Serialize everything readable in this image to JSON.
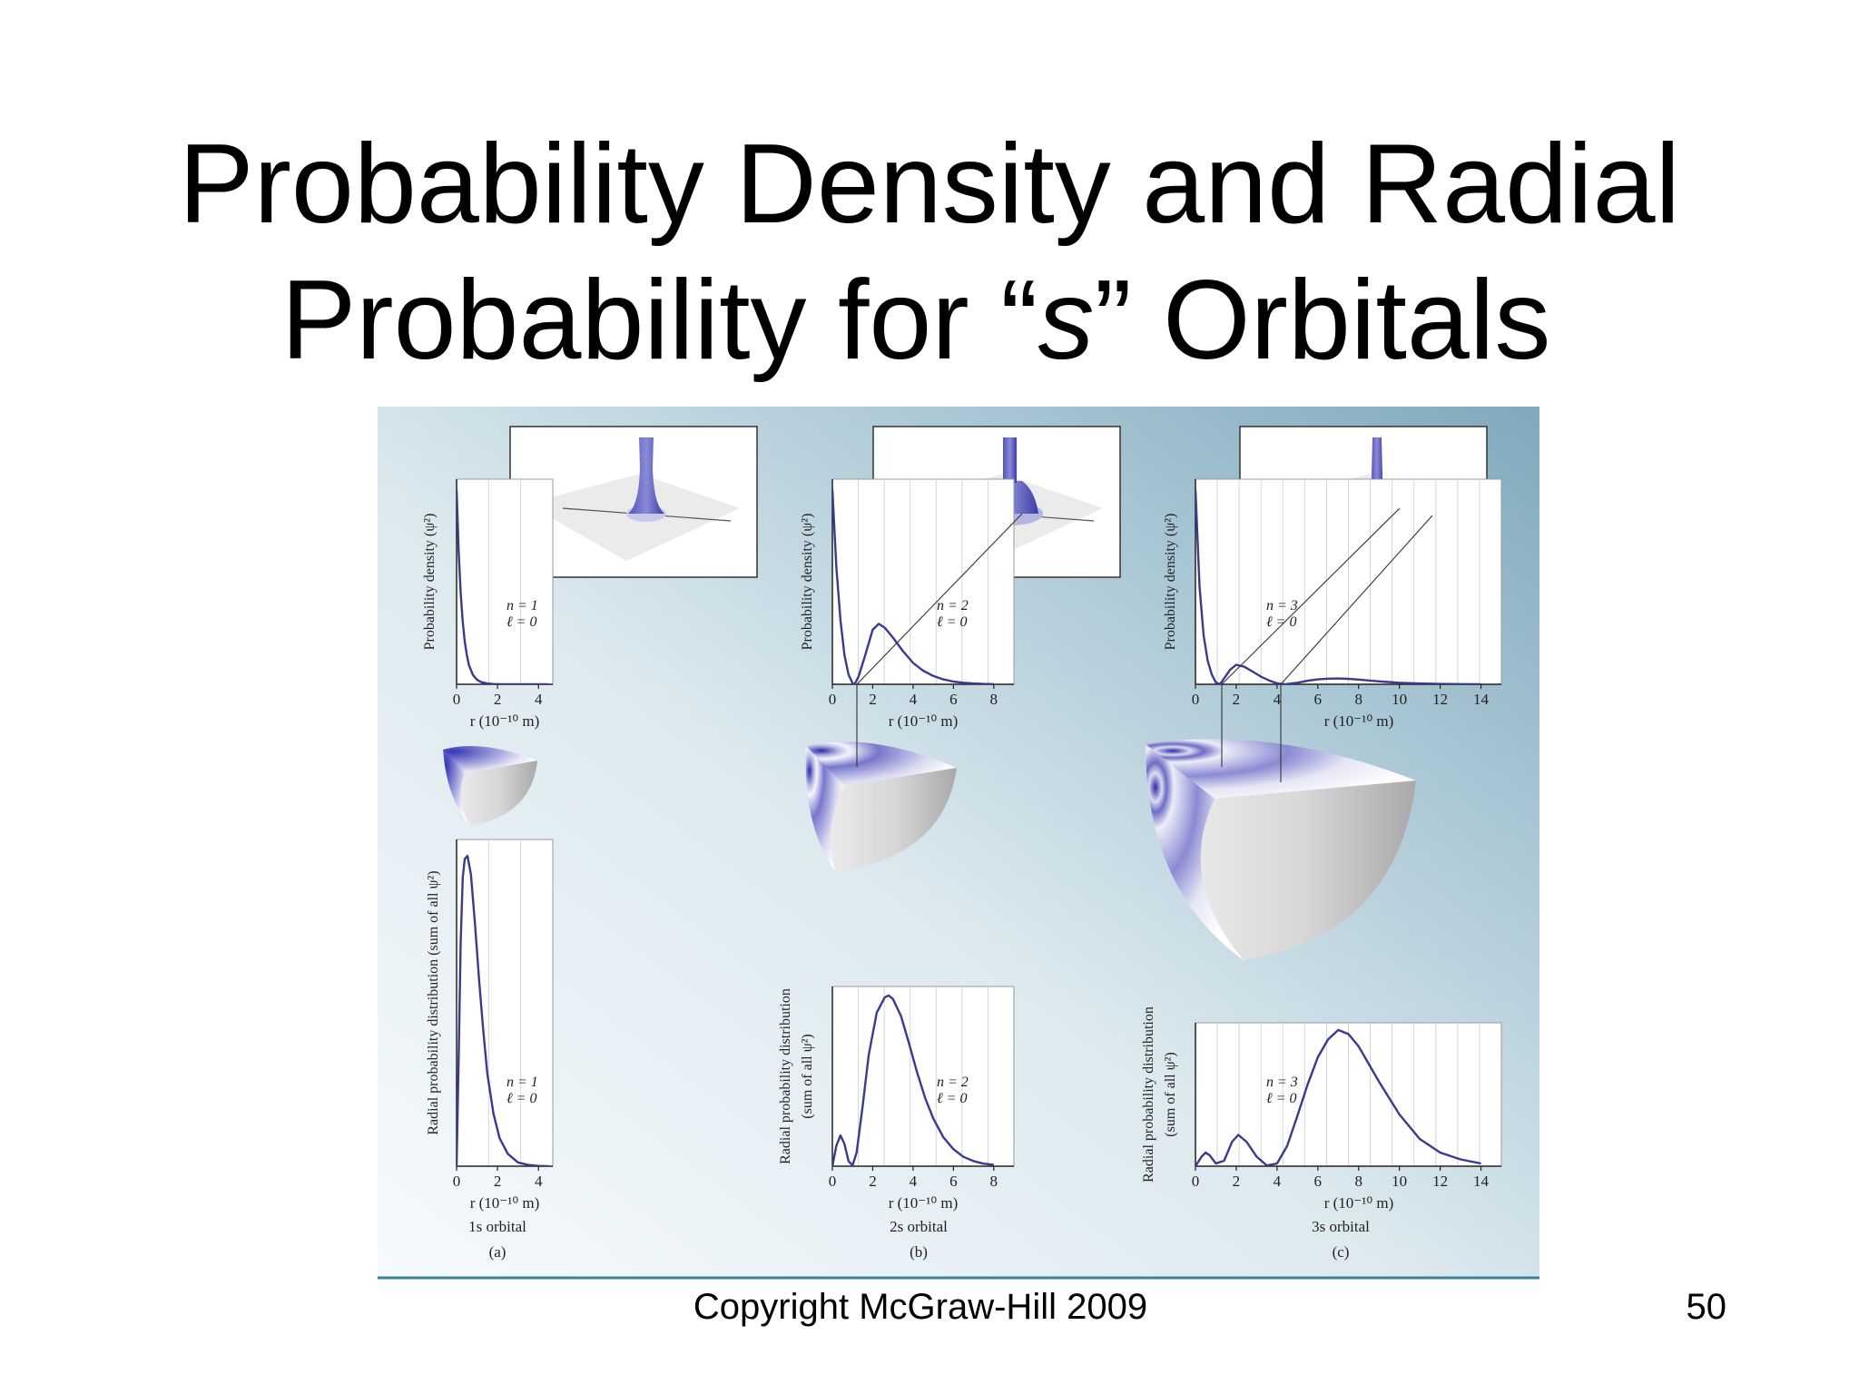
{
  "slide": {
    "title_line1": "Probability Density and Radial",
    "title_line2_a": "Probability for “",
    "title_line2_italic": "s",
    "title_line2_b": "” Orbitals",
    "copyright": "Copyright McGraw-Hill 2009",
    "page_number": "50"
  },
  "chart_data": [
    {
      "type": "line",
      "id": "1s-density",
      "ylabel": "Probability density (ψ²)",
      "xlabel": "r (10⁻¹⁰ m)",
      "xlim": [
        0,
        4.7
      ],
      "xticks": [
        0,
        2,
        4
      ],
      "annotation": [
        "n = 1",
        "ℓ = 0"
      ],
      "x": [
        0.0,
        0.1,
        0.2,
        0.3,
        0.4,
        0.5,
        0.6,
        0.8,
        1.0,
        1.2,
        1.5,
        1.8,
        2.2,
        2.6,
        3.0,
        3.5,
        4.0,
        4.5
      ],
      "y": [
        1.0,
        0.68,
        0.47,
        0.32,
        0.22,
        0.15,
        0.1,
        0.048,
        0.023,
        0.011,
        0.004,
        0.0015,
        0.0004,
        0.0001,
        0.0,
        0.0,
        0.0,
        0.0
      ]
    },
    {
      "type": "line",
      "id": "2s-density",
      "ylabel": "Probability density (ψ²)",
      "xlabel": "r (10⁻¹⁰ m)",
      "xlim": [
        0,
        9.0
      ],
      "xticks": [
        0,
        2,
        4,
        6,
        8
      ],
      "annotation": [
        "n = 2",
        "ℓ = 0"
      ],
      "x": [
        0.0,
        0.2,
        0.4,
        0.6,
        0.8,
        1.0,
        1.1,
        1.3,
        1.6,
        2.0,
        2.3,
        2.6,
        3.0,
        3.5,
        4.0,
        4.5,
        5.0,
        5.5,
        6.0,
        6.5,
        7.0,
        7.5,
        8.0
      ],
      "y": [
        1.0,
        0.6,
        0.33,
        0.15,
        0.05,
        0.006,
        0.0,
        0.04,
        0.14,
        0.28,
        0.31,
        0.29,
        0.24,
        0.17,
        0.11,
        0.07,
        0.043,
        0.025,
        0.014,
        0.008,
        0.004,
        0.002,
        0.001
      ]
    },
    {
      "type": "line",
      "id": "3s-density",
      "ylabel": "Probability density (ψ²)",
      "xlabel": "r (10⁻¹⁰ m)",
      "xlim": [
        0,
        15.0
      ],
      "xticks": [
        0,
        2,
        4,
        6,
        8,
        10,
        12,
        14
      ],
      "annotation": [
        "n = 3",
        "ℓ = 0"
      ],
      "x": [
        0.0,
        0.2,
        0.4,
        0.6,
        0.8,
        1.0,
        1.2,
        1.4,
        1.7,
        2.0,
        2.4,
        2.8,
        3.2,
        3.6,
        4.0,
        4.4,
        5.0,
        5.5,
        6.0,
        6.5,
        7.0,
        7.5,
        8.0,
        9.0,
        10.0,
        11.0,
        12.0,
        13.0,
        14.0
      ],
      "y": [
        1.0,
        0.5,
        0.25,
        0.12,
        0.05,
        0.01,
        0.0,
        0.03,
        0.075,
        0.1,
        0.09,
        0.065,
        0.04,
        0.02,
        0.005,
        0.0,
        0.008,
        0.018,
        0.025,
        0.029,
        0.03,
        0.028,
        0.024,
        0.015,
        0.008,
        0.004,
        0.002,
        0.001,
        0.0
      ]
    },
    {
      "type": "line",
      "id": "1s-radial",
      "ylabel": "Radial probability distribution (sum of all ψ²)",
      "xlabel": "r (10⁻¹⁰ m)",
      "xlim": [
        0,
        4.7
      ],
      "xticks": [
        0,
        2,
        4
      ],
      "annotation": [
        "n = 1",
        "ℓ = 0"
      ],
      "caption": "1s orbital",
      "panel": "(a)",
      "x": [
        0.0,
        0.1,
        0.2,
        0.3,
        0.4,
        0.53,
        0.7,
        0.9,
        1.1,
        1.3,
        1.5,
        1.8,
        2.1,
        2.5,
        3.0,
        3.5,
        4.0,
        4.5
      ],
      "y": [
        0.0,
        0.35,
        0.72,
        0.93,
        0.99,
        1.0,
        0.94,
        0.78,
        0.6,
        0.44,
        0.3,
        0.17,
        0.09,
        0.04,
        0.012,
        0.004,
        0.001,
        0.0
      ]
    },
    {
      "type": "line",
      "id": "2s-radial",
      "ylabel": "Radial probability distribution (sum of all ψ²)",
      "xlabel": "r (10⁻¹⁰ m)",
      "xlim": [
        0,
        9.0
      ],
      "xticks": [
        0,
        2,
        4,
        6,
        8
      ],
      "annotation": [
        "n = 2",
        "ℓ = 0"
      ],
      "caption": "2s orbital",
      "panel": "(b)",
      "x": [
        0.0,
        0.2,
        0.4,
        0.6,
        0.8,
        1.0,
        1.2,
        1.5,
        1.8,
        2.2,
        2.6,
        2.8,
        3.0,
        3.4,
        3.8,
        4.2,
        4.6,
        5.0,
        5.5,
        6.0,
        6.5,
        7.0,
        7.5,
        8.0
      ],
      "y": [
        0.0,
        0.12,
        0.18,
        0.13,
        0.03,
        0.005,
        0.08,
        0.35,
        0.65,
        0.9,
        0.99,
        1.0,
        0.98,
        0.88,
        0.72,
        0.55,
        0.4,
        0.28,
        0.17,
        0.1,
        0.055,
        0.03,
        0.015,
        0.008
      ]
    },
    {
      "type": "line",
      "id": "3s-radial",
      "ylabel": "Radial probability distribution (sum of all ψ²)",
      "xlabel": "r (10⁻¹⁰ m)",
      "xlim": [
        0,
        15.0
      ],
      "xticks": [
        0,
        2,
        4,
        6,
        8,
        10,
        12,
        14
      ],
      "annotation": [
        "n = 3",
        "ℓ = 0"
      ],
      "caption": "3s orbital",
      "panel": "(c)",
      "x": [
        0.0,
        0.3,
        0.5,
        0.7,
        1.0,
        1.4,
        1.8,
        2.1,
        2.5,
        3.0,
        3.5,
        4.0,
        4.5,
        5.0,
        5.5,
        6.0,
        6.5,
        7.0,
        7.5,
        8.0,
        9.0,
        10.0,
        11.0,
        12.0,
        13.0,
        14.0
      ],
      "y": [
        0.0,
        0.07,
        0.1,
        0.08,
        0.02,
        0.04,
        0.18,
        0.23,
        0.18,
        0.07,
        0.005,
        0.02,
        0.15,
        0.37,
        0.6,
        0.8,
        0.93,
        1.0,
        0.97,
        0.88,
        0.62,
        0.38,
        0.2,
        0.1,
        0.05,
        0.02
      ]
    }
  ]
}
